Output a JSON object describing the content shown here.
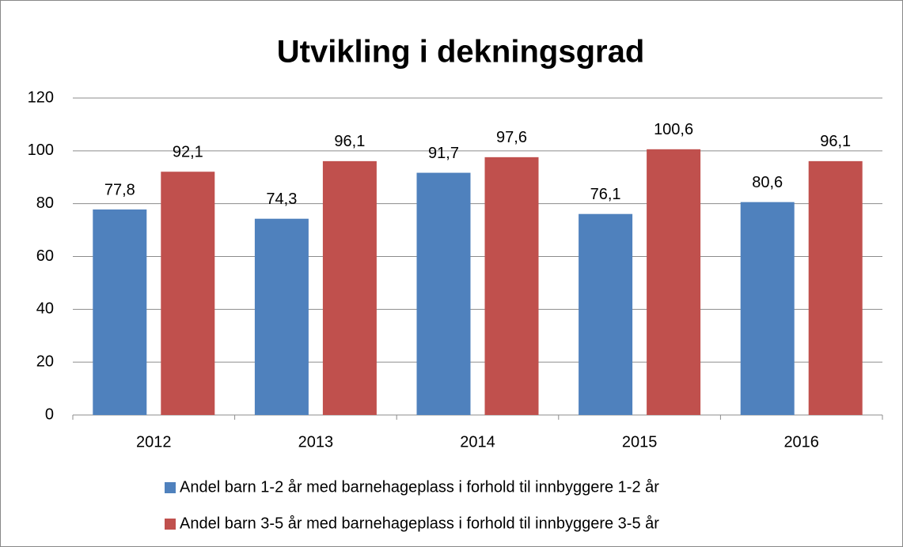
{
  "chart_data": {
    "type": "bar",
    "title": "Utvikling i dekningsgrad",
    "categories": [
      "2012",
      "2013",
      "2014",
      "2015",
      "2016"
    ],
    "series": [
      {
        "name": "Andel barn 1-2 år med barnehageplass i forhold til innbyggere 1-2 år",
        "color": "#4f81bd",
        "values": [
          77.8,
          74.3,
          91.7,
          76.1,
          80.6
        ],
        "value_labels": [
          "77,8",
          "74,3",
          "91,7",
          "76,1",
          "80,6"
        ]
      },
      {
        "name": "Andel barn 3-5 år med barnehageplass i forhold til innbyggere 3-5 år",
        "color": "#c0504d",
        "values": [
          92.1,
          96.1,
          97.6,
          100.6,
          96.1
        ],
        "value_labels": [
          "92,1",
          "96,1",
          "97,6",
          "100,6",
          "96,1"
        ]
      }
    ],
    "ylim": [
      0,
      120
    ],
    "yticks": [
      0,
      20,
      40,
      60,
      80,
      100,
      120
    ],
    "grid": true,
    "legend": "bottom"
  }
}
